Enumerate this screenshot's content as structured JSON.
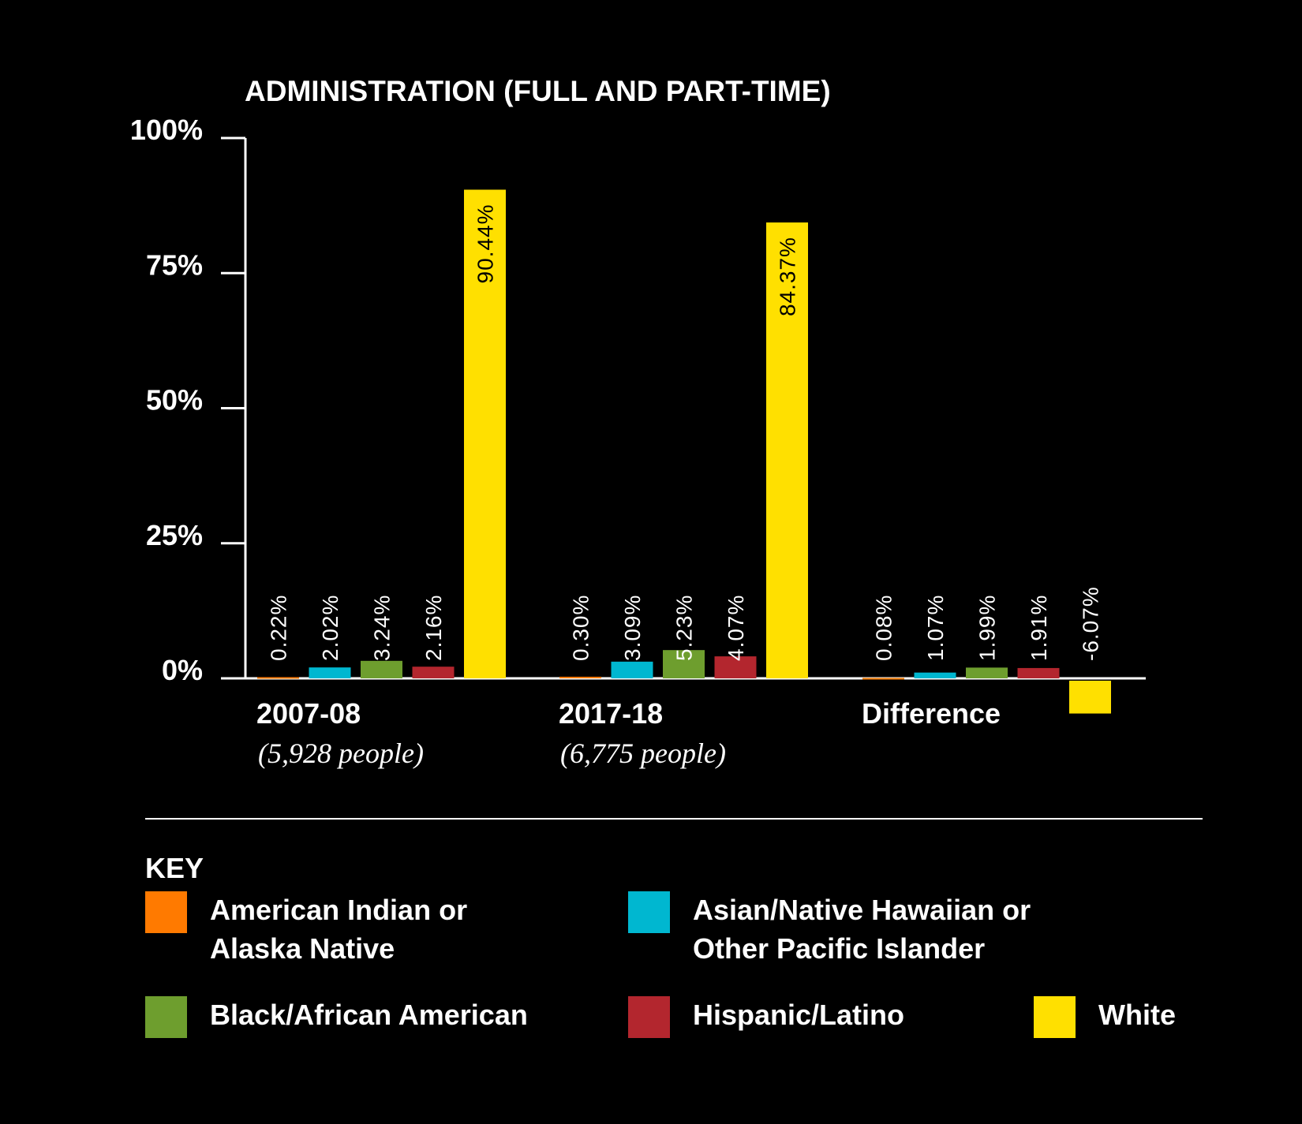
{
  "chart_data": {
    "type": "bar",
    "title": "ADMINISTRATION (FULL AND PART-TIME)",
    "ylim": [
      0,
      100
    ],
    "yticks": [
      "100%",
      "75%",
      "50%",
      "25%",
      "0%"
    ],
    "categories": [
      {
        "label": "2007-08",
        "sublabel": "(5,928 people)"
      },
      {
        "label": "2017-18",
        "sublabel": "(6,775 people)"
      },
      {
        "label": "Difference",
        "sublabel": ""
      }
    ],
    "series": [
      {
        "name": "American Indian or Alaska Native",
        "color": "#FF7A00",
        "values": [
          0.22,
          0.3,
          0.08
        ],
        "labels": [
          "0.22%",
          "0.30%",
          "0.08%"
        ]
      },
      {
        "name": "Asian/Native Hawaiian or Other Pacific Islander",
        "color": "#00B7D0",
        "values": [
          2.02,
          3.09,
          1.07
        ],
        "labels": [
          "2.02%",
          "3.09%",
          "1.07%"
        ]
      },
      {
        "name": "Black/African American",
        "color": "#6E9E2E",
        "values": [
          3.24,
          5.23,
          1.99
        ],
        "labels": [
          "3.24%",
          "5.23%",
          "1.99%"
        ]
      },
      {
        "name": "Hispanic/Latino",
        "color": "#B3262E",
        "values": [
          2.16,
          4.07,
          1.91
        ],
        "labels": [
          "2.16%",
          "4.07%",
          "1.91%"
        ]
      },
      {
        "name": "White",
        "color": "#FFE000",
        "values": [
          90.44,
          84.37,
          -6.07
        ],
        "labels": [
          "90.44%",
          "84.37%",
          "-6.07%"
        ]
      }
    ],
    "legend_title": "KEY",
    "legend_position": "bottom",
    "grid": false
  }
}
